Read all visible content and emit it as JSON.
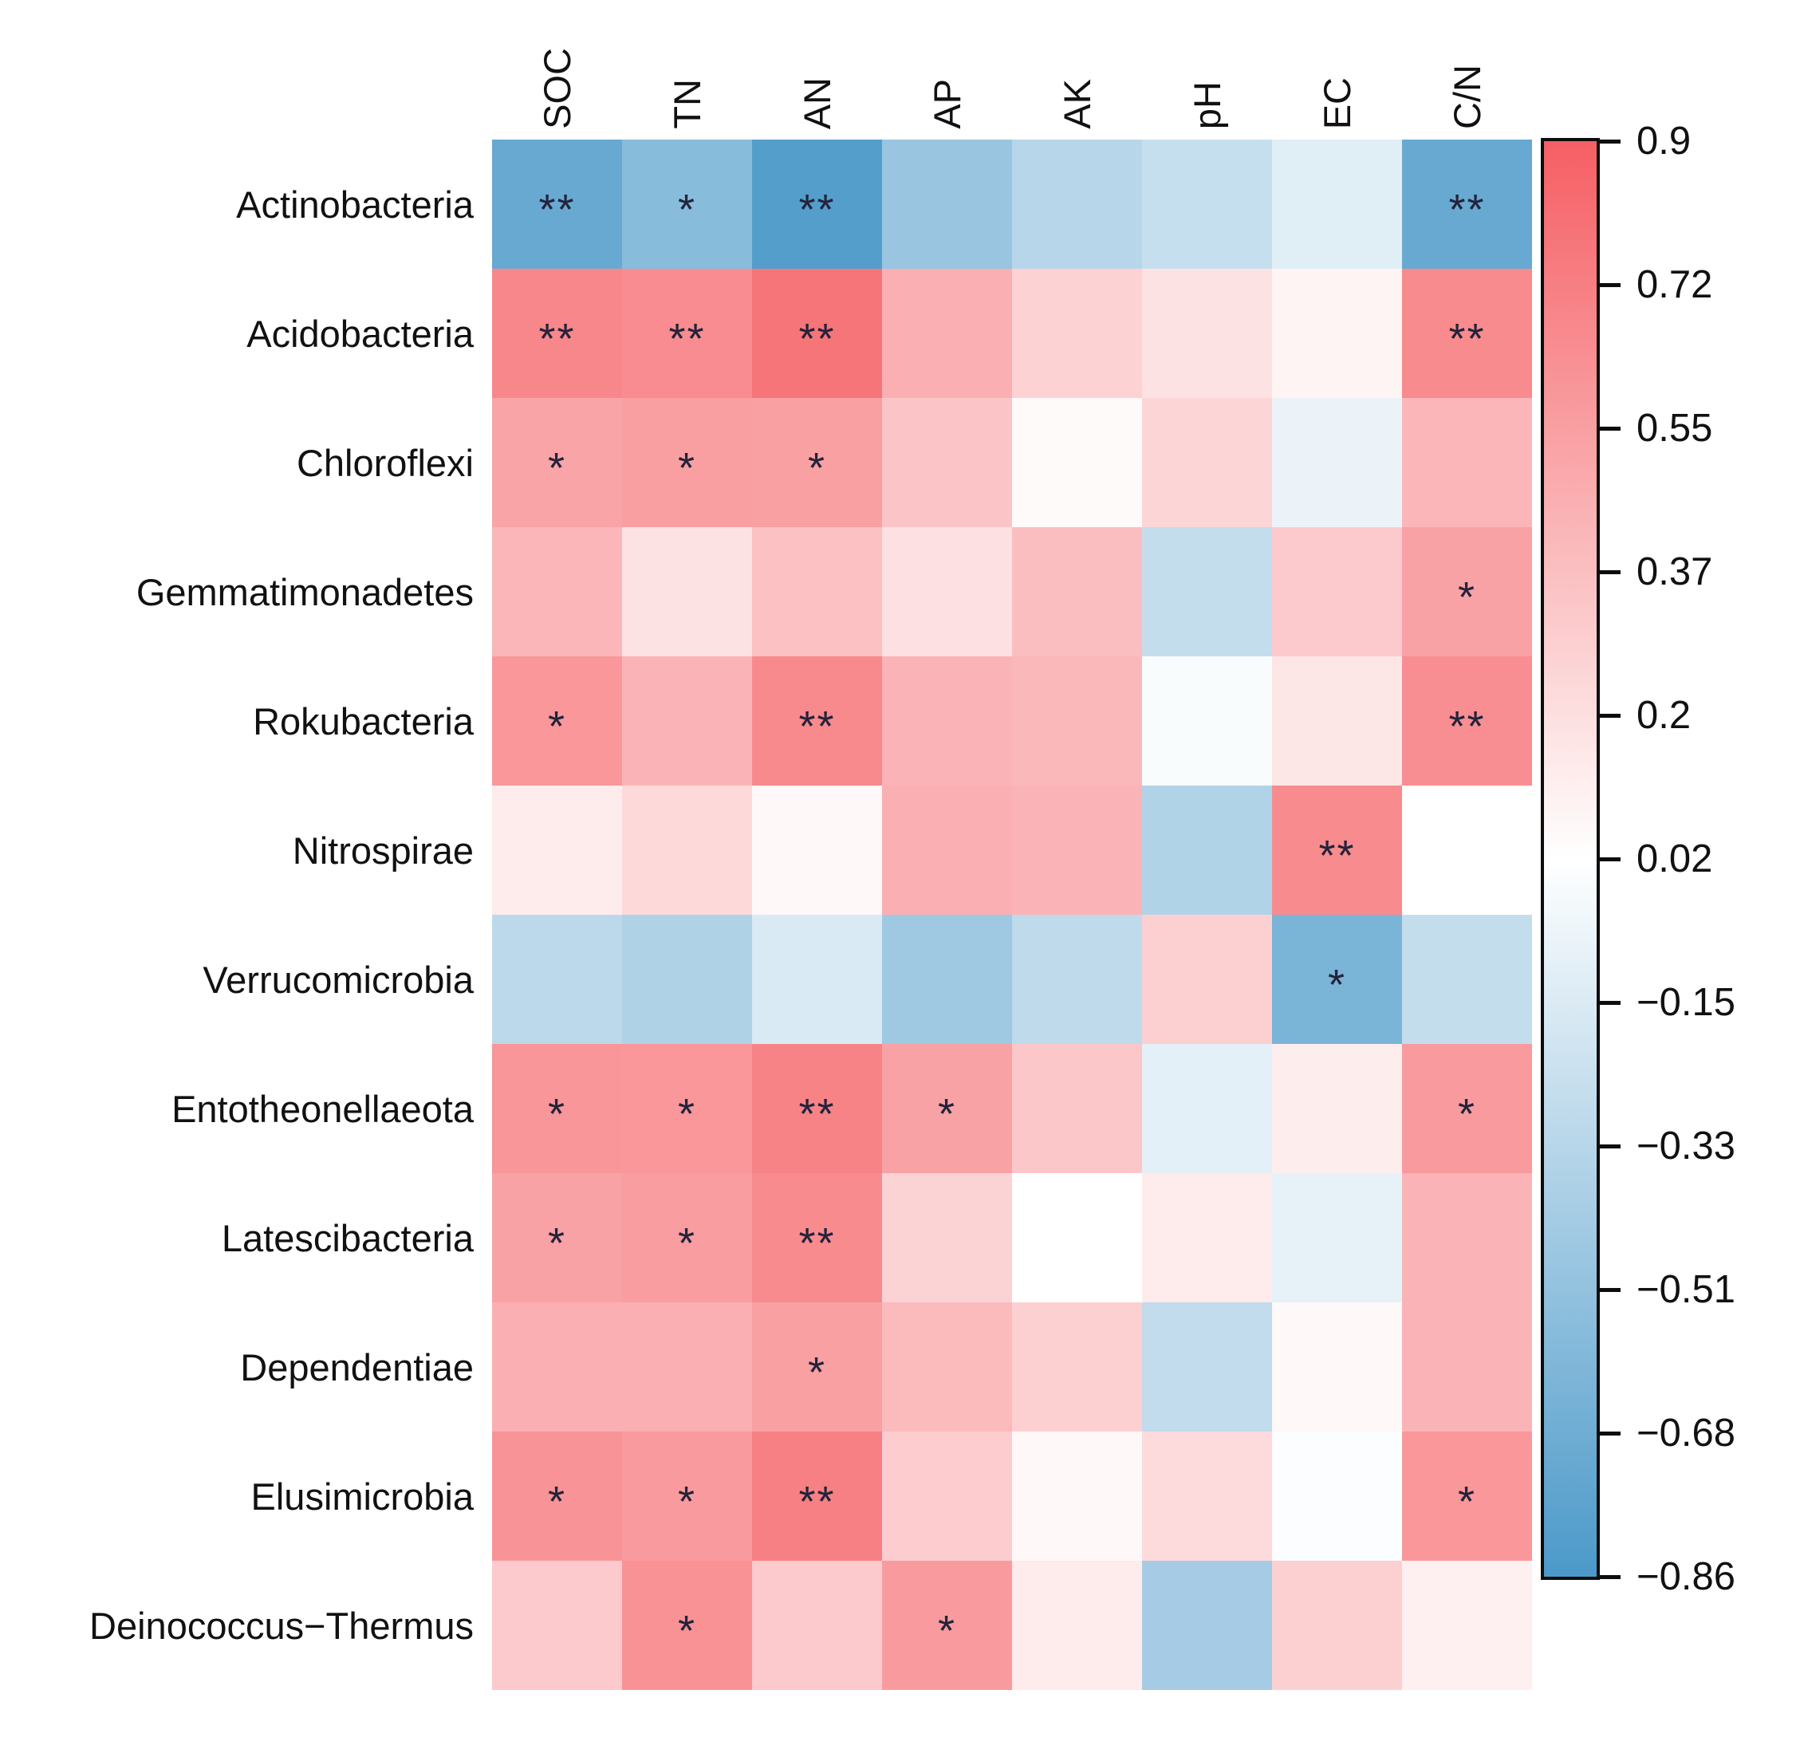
{
  "chart_data": {
    "type": "heatmap",
    "title": "",
    "xlabel": "",
    "ylabel": "",
    "grid": false,
    "legend_position": "right",
    "columns": [
      "SOC",
      "TN",
      "AN",
      "AP",
      "AK",
      "pH",
      "EC",
      "C/N"
    ],
    "rows": [
      "Actinobacteria",
      "Acidobacteria",
      "Chloroflexi",
      "Gemmatimonadetes",
      "Rokubacteria",
      "Nitrospirae",
      "Verrucomicrobia",
      "Entotheonellaeota",
      "Latescibacteria",
      "Dependentiae",
      "Elusimicrobia",
      "Deinococcus−Thermus"
    ],
    "series": [
      {
        "name": "Actinobacteria",
        "values": [
          -0.72,
          -0.56,
          -0.82,
          -0.48,
          -0.33,
          -0.26,
          -0.13,
          -0.72
        ],
        "significance": [
          "**",
          "*",
          "**",
          "",
          "",
          "",
          "",
          "**"
        ]
      },
      {
        "name": "Acidobacteria",
        "values": [
          0.68,
          0.65,
          0.78,
          0.46,
          0.27,
          0.18,
          0.08,
          0.66
        ],
        "significance": [
          "**",
          "**",
          "**",
          "",
          "",
          "",
          "",
          "**"
        ]
      },
      {
        "name": "Chloroflexi",
        "values": [
          0.52,
          0.55,
          0.54,
          0.34,
          0.05,
          0.25,
          -0.08,
          0.42
        ],
        "significance": [
          "*",
          "*",
          "*",
          "",
          "",
          "",
          "",
          ""
        ]
      },
      {
        "name": "Gemmatimonadetes",
        "values": [
          0.42,
          0.18,
          0.36,
          0.19,
          0.38,
          -0.27,
          0.31,
          0.53
        ],
        "significance": [
          "",
          "",
          "",
          "",
          "",
          "",
          "",
          "*"
        ]
      },
      {
        "name": "Rokubacteria",
        "values": [
          0.59,
          0.43,
          0.67,
          0.43,
          0.41,
          -0.01,
          0.16,
          0.64
        ],
        "significance": [
          "*",
          "",
          "**",
          "",
          "",
          "",
          "",
          "**"
        ]
      },
      {
        "name": "Nitrospirae",
        "values": [
          0.13,
          0.23,
          0.06,
          0.46,
          0.43,
          -0.36,
          0.66,
          0.02
        ],
        "significance": [
          "",
          "",
          "",
          "",
          "",
          "",
          "**",
          ""
        ]
      },
      {
        "name": "Verrucomicrobia",
        "values": [
          -0.31,
          -0.37,
          -0.16,
          -0.45,
          -0.3,
          0.28,
          -0.63,
          -0.27
        ],
        "significance": [
          "",
          "",
          "",
          "",
          "",
          "",
          "*",
          ""
        ]
      },
      {
        "name": "Entotheonellaeota",
        "values": [
          0.6,
          0.59,
          0.7,
          0.53,
          0.33,
          -0.11,
          0.12,
          0.57
        ],
        "significance": [
          "*",
          "*",
          "**",
          "*",
          "",
          "",
          "",
          "*"
        ]
      },
      {
        "name": "Latescibacteria",
        "values": [
          0.53,
          0.56,
          0.66,
          0.26,
          0.02,
          0.13,
          -0.1,
          0.43
        ],
        "significance": [
          "*",
          "*",
          "**",
          "",
          "",
          "",
          "",
          ""
        ]
      },
      {
        "name": "Dependentiae",
        "values": [
          0.46,
          0.46,
          0.54,
          0.4,
          0.28,
          -0.28,
          0.06,
          0.43
        ],
        "significance": [
          "",
          "",
          "*",
          "",
          "",
          "",
          "",
          ""
        ]
      },
      {
        "name": "Elusimicrobia",
        "values": [
          0.61,
          0.57,
          0.72,
          0.3,
          0.06,
          0.22,
          0.0,
          0.59
        ],
        "significance": [
          "*",
          "*",
          "**",
          "",
          "",
          "",
          "",
          "*"
        ]
      },
      {
        "name": "Deinococcus−Thermus",
        "values": [
          0.31,
          0.62,
          0.31,
          0.57,
          0.13,
          -0.42,
          0.28,
          0.1
        ],
        "significance": [
          "",
          "*",
          "",
          "*",
          "",
          "",
          "",
          ""
        ]
      }
    ],
    "color_scale": {
      "min": -0.86,
      "mid": 0.02,
      "max": 0.9,
      "min_color": "#4B99C9",
      "mid_color": "#FFFFFF",
      "max_color": "#F55F64"
    },
    "colorbar_ticks": [
      "0.9",
      "0.72",
      "0.55",
      "0.37",
      "0.2",
      "0.02",
      "−0.15",
      "−0.33",
      "−0.51",
      "−0.68",
      "−0.86"
    ],
    "significance_legend": {
      "single_star": "*",
      "double_star": "**"
    }
  }
}
